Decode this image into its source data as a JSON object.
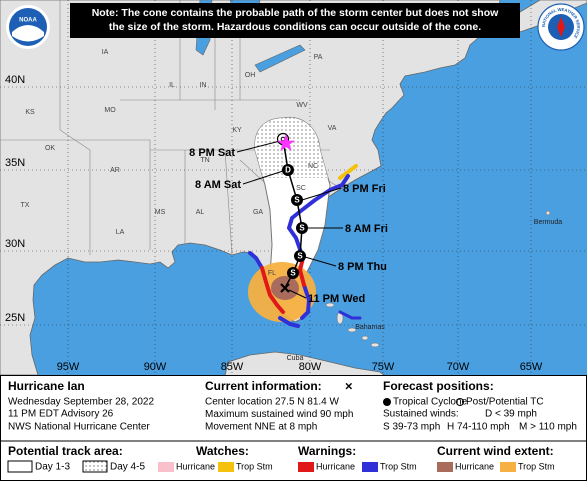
{
  "note": {
    "lines": [
      "Note: The cone contains the probable path of the storm center but does not show",
      "the size of the storm. Hazardous conditions can occur outside of the cone."
    ]
  },
  "logos": {
    "noaa": "NOAA",
    "nws": "NATIONAL WEATHER SERVICE"
  },
  "map": {
    "latitudes": [
      "40N",
      "35N",
      "30N",
      "25N"
    ],
    "longitudes": [
      "95W",
      "90W",
      "85W",
      "80W",
      "75W",
      "70W",
      "65W"
    ],
    "states": [
      "IA",
      "IL",
      "IN",
      "OH",
      "PA",
      "KS",
      "MO",
      "KY",
      "WV",
      "VA",
      "OK",
      "AR",
      "TN",
      "NC",
      "SC",
      "MS",
      "AL",
      "GA",
      "LA",
      "TX",
      "FL"
    ],
    "places": [
      "Bermuda",
      "Bahamas",
      "Cuba"
    ]
  },
  "track": {
    "times": [
      "8 PM Sat",
      "8 AM Sat",
      "8 PM Fri",
      "8 AM Fri",
      "8 PM Thu",
      "11 PM Wed"
    ],
    "markers": [
      "D",
      "S",
      "S",
      "S",
      "S"
    ]
  },
  "info": {
    "storm": "Hurricane Ian",
    "date": "Wednesday September 28, 2022",
    "advisory": "11 PM EDT Advisory 26",
    "center": "NWS National Hurricane Center"
  },
  "current": {
    "heading": "Current information:",
    "symbol": "×",
    "lines": [
      "Center location 27.5 N 81.4 W",
      "Maximum sustained wind 90 mph",
      "Movement NNE at 8 mph"
    ]
  },
  "forecast_positions": {
    "heading": "Forecast positions:",
    "tropical": "Tropical Cyclone",
    "post": "Post/Potential TC",
    "winds": "Sustained winds:",
    "d": "D < 39 mph",
    "s": "S 39-73 mph",
    "h": "H 74-110 mph",
    "m": "M > 110 mph"
  },
  "legend": {
    "track": {
      "heading": "Potential track area:",
      "day13": "Day 1-3",
      "day45": "Day 4-5"
    },
    "watches": {
      "heading": "Watches:",
      "hurricane": "Hurricane",
      "storm": "Trop Stm"
    },
    "warnings": {
      "heading": "Warnings:",
      "hurricane": "Hurricane",
      "storm": "Trop Stm"
    },
    "wind": {
      "heading": "Current wind extent:",
      "hurricane": "Hurricane",
      "storm": "Trop Stm"
    }
  }
}
